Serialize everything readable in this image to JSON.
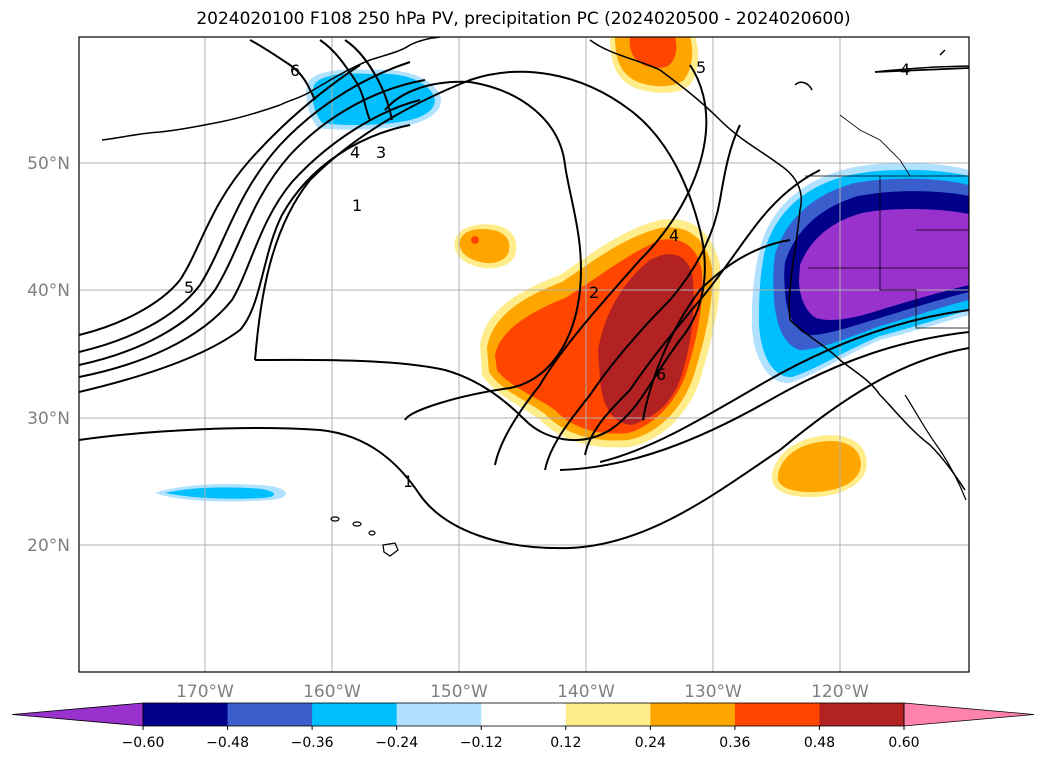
{
  "title": "2024020100 F108 250 hPa PV, precipitation PC (2024020500 - 2024020600)",
  "map": {
    "lat_labels": [
      "50°N",
      "40°N",
      "30°N",
      "20°N"
    ],
    "lon_labels": [
      "170°W",
      "160°W",
      "150°W",
      "140°W",
      "130°W",
      "120°W"
    ],
    "pv_contour_labels": [
      "6",
      "5",
      "4",
      "3",
      "1",
      "5",
      "2",
      "4",
      "6",
      "1",
      "4"
    ],
    "colors": {
      "land_outline": "#000000",
      "grid": "#b0b0b0"
    }
  },
  "colorbar": {
    "tick_labels": [
      "−0.60",
      "−0.48",
      "−0.36",
      "−0.24",
      "−0.12",
      "0.12",
      "0.24",
      "0.36",
      "0.48",
      "0.60"
    ],
    "colors": [
      "#9932cc",
      "#00008b",
      "#3a5fcd",
      "#00bfff",
      "#b0e2ff",
      "#ffffff",
      "#ffec8b",
      "#ffa500",
      "#ff4500",
      "#b22222",
      "#ff82ab"
    ]
  }
}
